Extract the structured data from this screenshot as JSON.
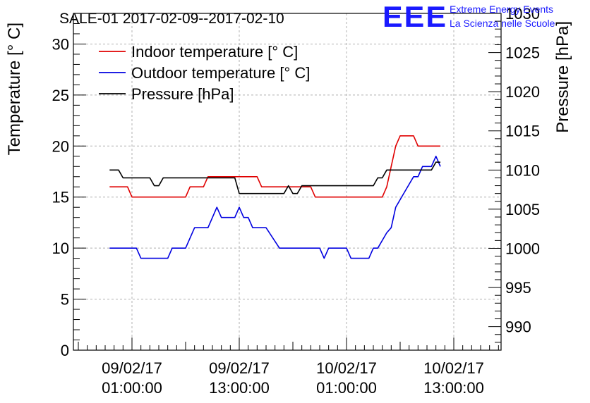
{
  "header": {
    "title": "SALE-01 2017-02-09--2017-02-10",
    "logo_text": "EEE",
    "brand_line1": "Extreme Energy Events",
    "brand_line2": "La Scienza nelle Scuole"
  },
  "colors": {
    "indoor": "#e00000",
    "outdoor": "#0000e0",
    "pressure": "#000000",
    "logo": "#1a1aff",
    "grid": "#b0b0b0"
  },
  "chart_data": {
    "type": "line",
    "title": "SALE-01 2017-02-09--2017-02-10",
    "ylabel": "Temperature [° C]",
    "y2label": "Pressure [hPa]",
    "ylim": [
      0,
      33
    ],
    "y2lim": [
      987,
      1030
    ],
    "grid": true,
    "legend_position": "top-left",
    "x_ticks": [
      {
        "l1": "09/02/17",
        "l2": "01:00:00",
        "h": 1
      },
      {
        "l1": "09/02/17",
        "l2": "13:00:00",
        "h": 13
      },
      {
        "l1": "10/02/17",
        "l2": "01:00:00",
        "h": 25
      },
      {
        "l1": "10/02/17",
        "l2": "13:00:00",
        "h": 37
      }
    ],
    "y_ticks": [
      "0",
      "5",
      "10",
      "15",
      "20",
      "25",
      "30"
    ],
    "y2_ticks": [
      "990",
      "995",
      "1000",
      "1005",
      "1010",
      "1015",
      "1020",
      "1025",
      "1030"
    ],
    "series": [
      {
        "name": "Indoor temperature [° C]",
        "axis": "left",
        "color_key": "indoor",
        "points": [
          [
            -1.5,
            16
          ],
          [
            0.5,
            16
          ],
          [
            1.0,
            15
          ],
          [
            7.0,
            15
          ],
          [
            7.5,
            16
          ],
          [
            9.0,
            16
          ],
          [
            9.5,
            17
          ],
          [
            15.0,
            17
          ],
          [
            15.5,
            16
          ],
          [
            21.0,
            16
          ],
          [
            21.5,
            15
          ],
          [
            29.0,
            15
          ],
          [
            29.5,
            16
          ],
          [
            30.0,
            18
          ],
          [
            30.5,
            20
          ],
          [
            31.0,
            21
          ],
          [
            32.5,
            21
          ],
          [
            33.0,
            20
          ],
          [
            35.5,
            20
          ]
        ]
      },
      {
        "name": "Outdoor temperature [° C]",
        "axis": "left",
        "color_key": "outdoor",
        "points": [
          [
            -1.5,
            10
          ],
          [
            1.5,
            10
          ],
          [
            2.0,
            9
          ],
          [
            5.0,
            9
          ],
          [
            5.5,
            10
          ],
          [
            7.0,
            10
          ],
          [
            8.0,
            12
          ],
          [
            9.5,
            12
          ],
          [
            10.0,
            13
          ],
          [
            10.5,
            14
          ],
          [
            11.0,
            13
          ],
          [
            12.5,
            13
          ],
          [
            13.0,
            14
          ],
          [
            13.5,
            13
          ],
          [
            14.0,
            13
          ],
          [
            14.5,
            12
          ],
          [
            16.0,
            12
          ],
          [
            17.5,
            10
          ],
          [
            22.0,
            10
          ],
          [
            22.5,
            9
          ],
          [
            23.0,
            10
          ],
          [
            25.0,
            10
          ],
          [
            25.5,
            9
          ],
          [
            27.5,
            9
          ],
          [
            28.0,
            10
          ],
          [
            28.5,
            10
          ],
          [
            29.5,
            11.5
          ],
          [
            30.0,
            12
          ],
          [
            30.5,
            14
          ],
          [
            31.5,
            15.5
          ],
          [
            32.5,
            17
          ],
          [
            33.0,
            17
          ],
          [
            33.5,
            18
          ],
          [
            34.5,
            18
          ],
          [
            35.0,
            19
          ],
          [
            35.5,
            18
          ]
        ]
      },
      {
        "name": "Pressure [hPa]",
        "axis": "right",
        "color_key": "pressure",
        "points": [
          [
            -1.5,
            1010
          ],
          [
            -0.5,
            1010
          ],
          [
            0,
            1009
          ],
          [
            3.0,
            1009
          ],
          [
            3.5,
            1008
          ],
          [
            4.0,
            1008
          ],
          [
            4.5,
            1009
          ],
          [
            12.0,
            1009
          ],
          [
            12.5,
            1009
          ],
          [
            13.0,
            1007
          ],
          [
            18.0,
            1007
          ],
          [
            18.5,
            1008
          ],
          [
            19.0,
            1007
          ],
          [
            19.5,
            1007
          ],
          [
            20.0,
            1008
          ],
          [
            28.0,
            1008
          ],
          [
            28.5,
            1009
          ],
          [
            29.0,
            1009
          ],
          [
            29.5,
            1010
          ],
          [
            34.5,
            1010
          ],
          [
            35.0,
            1011
          ],
          [
            35.5,
            1011
          ]
        ]
      }
    ]
  }
}
